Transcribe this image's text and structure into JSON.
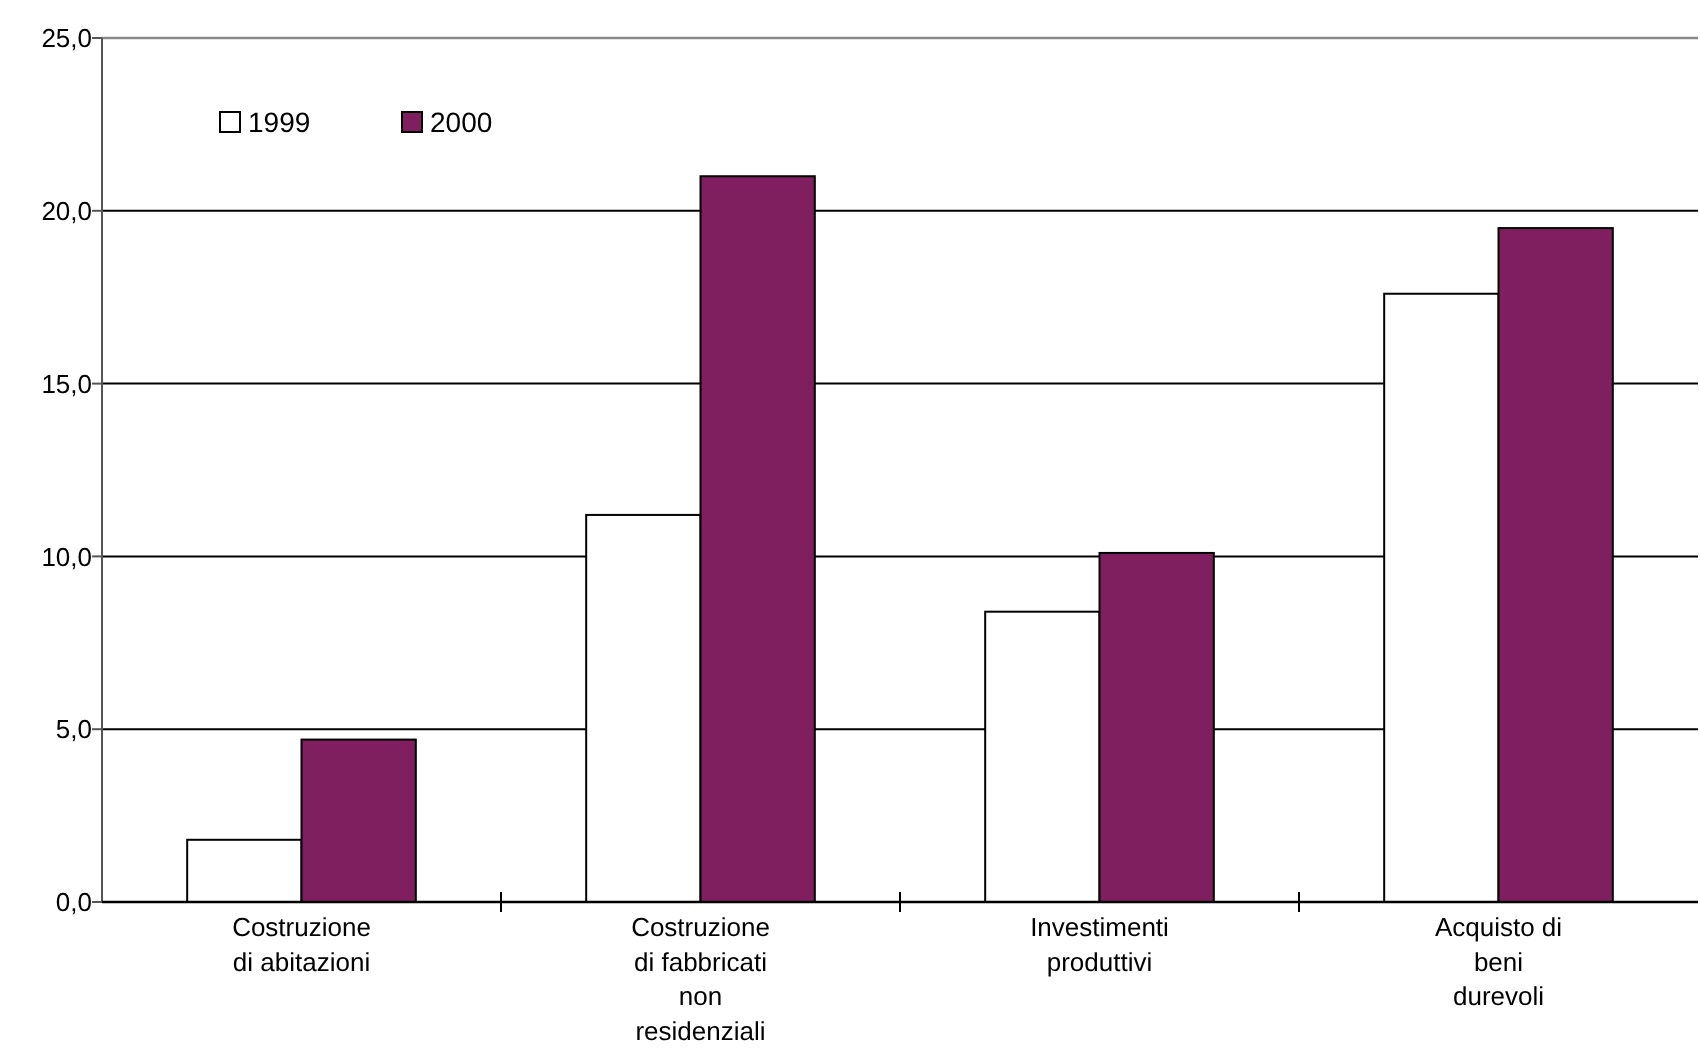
{
  "chart_data": {
    "type": "bar",
    "categories": [
      "Costruzione\ndi abitazioni",
      "Costruzione\ndi fabbricati\nnon\nresidenziali",
      "Investimenti\nproduttivi",
      "Acquisto di\nbeni\ndurevoli"
    ],
    "series": [
      {
        "name": "1999",
        "color": "#ffffff",
        "values": [
          1.8,
          11.2,
          8.4,
          17.6
        ]
      },
      {
        "name": "2000",
        "color": "#7f1f5f",
        "values": [
          4.7,
          21.0,
          10.1,
          19.5
        ]
      }
    ],
    "ylim": [
      0,
      25
    ],
    "yticks": [
      {
        "value": 0,
        "label": "0,0"
      },
      {
        "value": 5,
        "label": "5,0"
      },
      {
        "value": 10,
        "label": "10,0"
      },
      {
        "value": 15,
        "label": "15,0"
      },
      {
        "value": 20,
        "label": "20,0"
      },
      {
        "value": 25,
        "label": "25,0"
      }
    ],
    "grid": "y",
    "legend": "top left"
  }
}
